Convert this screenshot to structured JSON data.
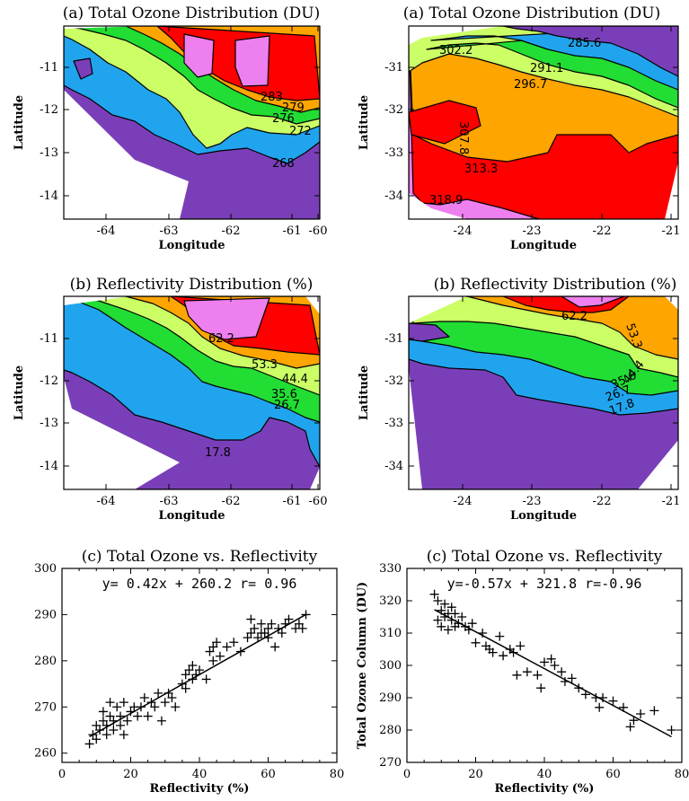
{
  "palette": {
    "violet": "#7a3fb8",
    "blue": "#21a4ee",
    "green": "#22dd33",
    "lime": "#ccff66",
    "orange": "#ffa500",
    "red": "#ff0000",
    "pink": "#ee7fee"
  },
  "panels": {
    "a1": {
      "title": "(a) Total Ozone Distribution (DU)",
      "xlabel": "Longitude",
      "ylabel": "Latitude",
      "xticks": [
        "-64",
        "-63",
        "-62",
        "-61",
        "-60"
      ],
      "yticks": [
        "-11",
        "-12",
        "-13",
        "-14"
      ],
      "contour_labels": [
        "283",
        "279",
        "276",
        "272",
        "268"
      ]
    },
    "a2": {
      "title": "(a) Total Ozone Distribution (DU)",
      "xlabel": "Longitude",
      "ylabel": "Latitude",
      "xticks": [
        "-24",
        "-23",
        "-22",
        "-21"
      ],
      "yticks": [
        "-31",
        "-32",
        "-33",
        "-34"
      ],
      "contour_labels": [
        "285.6",
        "302.2",
        "291.1",
        "296.7",
        "307.8",
        "313.3",
        "318.9"
      ]
    },
    "b1": {
      "title": "(b) Reflectivity Distribution (%)",
      "xlabel": "Longitude",
      "ylabel": "Latitude",
      "xticks": [
        "-64",
        "-63",
        "-62",
        "-61",
        "-60"
      ],
      "yticks": [
        "-11",
        "-12",
        "-13",
        "-14"
      ],
      "contour_labels": [
        "62.2",
        "53.3",
        "44.4",
        "35.6",
        "26.7",
        "17.8"
      ]
    },
    "b2": {
      "title": "(b) Reflectivity Distribution (%)",
      "xlabel": "Longitude",
      "ylabel": "Latitude",
      "xticks": [
        "-24",
        "-23",
        "-22",
        "-21"
      ],
      "yticks": [
        "-31",
        "-32",
        "-33",
        "-34"
      ],
      "contour_labels": [
        "62.2",
        "53.3",
        "44.4",
        "35.6",
        "26.7",
        "17.8"
      ]
    }
  },
  "chart_data": [
    {
      "type": "scatter",
      "title": "(c) Total Ozone vs. Reflectivity",
      "annotation": "y= 0.42x + 260.2  r= 0.96",
      "xlabel": "Reflectivity (%)",
      "ylabel": "",
      "xlim": [
        0,
        80
      ],
      "ylim": [
        258,
        300
      ],
      "xticks": [
        "0",
        "20",
        "40",
        "60",
        "80"
      ],
      "yticks": [
        "260",
        "270",
        "280",
        "290",
        "300"
      ],
      "fit": {
        "slope": 0.42,
        "intercept": 260.2,
        "x_range": [
          8,
          71
        ]
      },
      "x": [
        8,
        9,
        10,
        10,
        11,
        12,
        12,
        13,
        13,
        14,
        14,
        15,
        15,
        16,
        17,
        17,
        18,
        18,
        19,
        20,
        21,
        22,
        23,
        24,
        25,
        26,
        27,
        28,
        29,
        30,
        31,
        32,
        33,
        35,
        36,
        36,
        37,
        38,
        38,
        39,
        40,
        42,
        43,
        44,
        44,
        45,
        46,
        48,
        50,
        52,
        54,
        55,
        55,
        56,
        57,
        58,
        58,
        59,
        60,
        60,
        61,
        62,
        63,
        64,
        65,
        66,
        68,
        69,
        70,
        71
      ],
      "y": [
        262,
        264,
        266,
        263,
        265,
        267,
        269,
        266,
        264,
        271,
        268,
        265,
        267,
        270,
        266,
        268,
        271,
        264,
        267,
        269,
        270,
        268,
        270,
        272,
        268,
        271,
        270,
        273,
        267,
        271,
        273,
        272,
        270,
        275,
        277,
        274,
        278,
        276,
        279,
        277,
        278,
        276,
        282,
        280,
        283,
        284,
        281,
        283,
        284,
        282,
        285,
        289,
        286,
        287,
        285,
        288,
        286,
        286,
        287,
        285,
        288,
        283,
        287,
        286,
        288,
        289,
        287,
        288,
        287,
        290
      ]
    },
    {
      "type": "scatter",
      "title": "(c) Total Ozone vs. Reflectivity",
      "annotation": "y=-0.57x + 321.8  r=-0.96",
      "xlabel": "Reflectivity (%)",
      "ylabel": "Total Ozone Column (DU)",
      "xlim": [
        0,
        80
      ],
      "ylim": [
        270,
        330
      ],
      "xticks": [
        "0",
        "20",
        "40",
        "60",
        "80"
      ],
      "yticks": [
        "270",
        "280",
        "290",
        "300",
        "310",
        "320",
        "330"
      ],
      "fit": {
        "slope": -0.57,
        "intercept": 321.8,
        "x_range": [
          8,
          77
        ]
      },
      "x": [
        8,
        9,
        9,
        10,
        10,
        11,
        11,
        12,
        12,
        13,
        13,
        14,
        14,
        15,
        16,
        17,
        18,
        19,
        20,
        22,
        23,
        24,
        25,
        27,
        28,
        30,
        31,
        32,
        33,
        35,
        38,
        39,
        40,
        42,
        43,
        45,
        46,
        48,
        50,
        52,
        55,
        56,
        57,
        60,
        63,
        65,
        66,
        68,
        72,
        77
      ],
      "y": [
        322,
        320,
        314,
        317,
        312,
        319,
        315,
        316,
        311,
        314,
        318,
        312,
        316,
        313,
        315,
        312,
        311,
        313,
        307,
        310,
        306,
        305,
        304,
        309,
        303,
        305,
        304,
        297,
        306,
        298,
        297,
        293,
        301,
        302,
        300,
        298,
        295,
        296,
        293,
        291,
        290,
        287,
        290,
        289,
        287,
        281,
        283,
        285,
        286,
        280
      ]
    }
  ]
}
